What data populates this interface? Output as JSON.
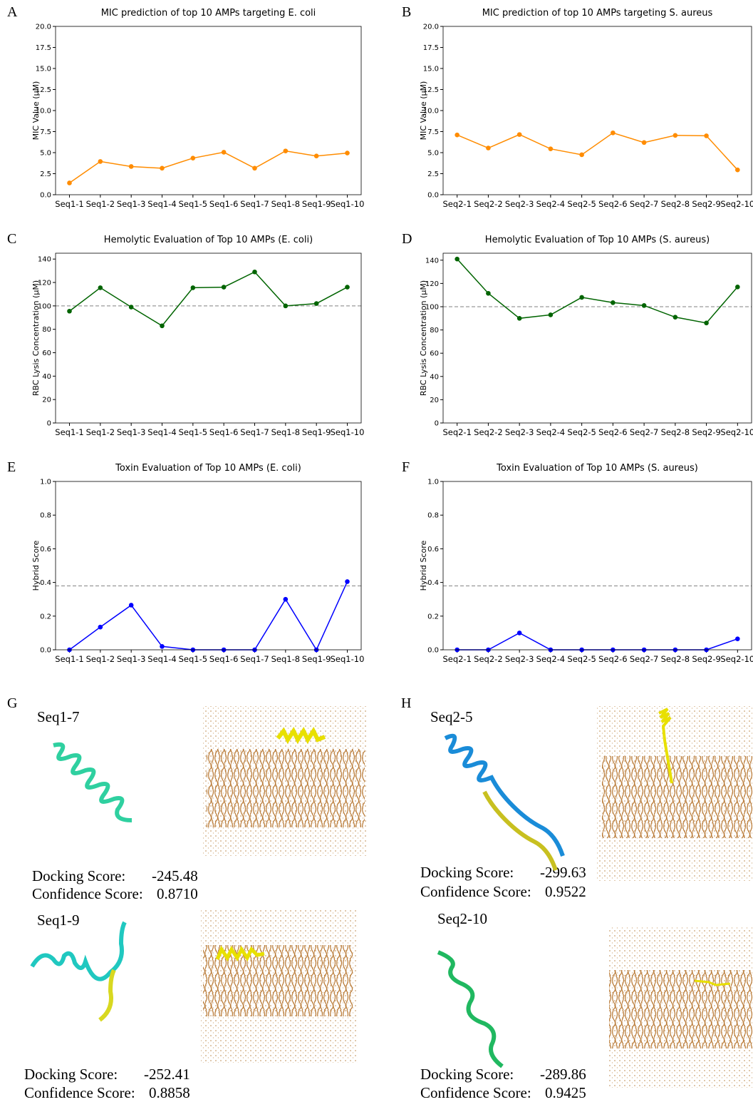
{
  "chart_data": [
    {
      "type": "line",
      "panel": "A",
      "title": "MIC prediction of top 10 AMPs targeting E. coli",
      "ylabel": "MIC Value (μM)",
      "categories": [
        "Seq1-1",
        "Seq1-2",
        "Seq1-3",
        "Seq1-4",
        "Seq1-5",
        "Seq1-6",
        "Seq1-7",
        "Seq1-8",
        "Seq1-9",
        "Seq1-10"
      ],
      "values": [
        1.4,
        3.95,
        3.35,
        3.15,
        4.35,
        5.05,
        3.15,
        5.2,
        4.6,
        4.95
      ],
      "color": "#ff8c00",
      "ylim": [
        0,
        20
      ],
      "yticks": [
        {
          "value": 0,
          "label": "0.0"
        },
        {
          "value": 2.5,
          "label": "2.5"
        },
        {
          "value": 5,
          "label": "5.0"
        },
        {
          "value": 7.5,
          "label": "7.5"
        },
        {
          "value": 10,
          "label": "10.0"
        },
        {
          "value": 12.5,
          "label": "12.5"
        },
        {
          "value": 15,
          "label": "15.0"
        },
        {
          "value": 17.5,
          "label": "17.5"
        },
        {
          "value": 20,
          "label": "20.0"
        }
      ]
    },
    {
      "type": "line",
      "panel": "B",
      "title": "MIC prediction of top 10 AMPs targeting S. aureus",
      "ylabel": "MIC Value (μM)",
      "categories": [
        "Seq2-1",
        "Seq2-2",
        "Seq2-3",
        "Seq2-4",
        "Seq2-5",
        "Seq2-6",
        "Seq2-7",
        "Seq2-8",
        "Seq2-9",
        "Seq2-10"
      ],
      "values": [
        7.1,
        5.55,
        7.15,
        5.45,
        4.75,
        7.35,
        6.2,
        7.05,
        7.0,
        2.95
      ],
      "color": "#ff8c00",
      "ylim": [
        0,
        20
      ],
      "yticks": [
        {
          "value": 0,
          "label": "0.0"
        },
        {
          "value": 2.5,
          "label": "2.5"
        },
        {
          "value": 5,
          "label": "5.0"
        },
        {
          "value": 7.5,
          "label": "7.5"
        },
        {
          "value": 10,
          "label": "10.0"
        },
        {
          "value": 12.5,
          "label": "12.5"
        },
        {
          "value": 15,
          "label": "15.0"
        },
        {
          "value": 17.5,
          "label": "17.5"
        },
        {
          "value": 20,
          "label": "20.0"
        }
      ]
    },
    {
      "type": "line",
      "panel": "C",
      "title": "Hemolytic Evaluation of Top 10 AMPs (E. coli)",
      "ylabel": "RBC Lysis Concentration (μM)",
      "categories": [
        "Seq1-1",
        "Seq1-2",
        "Seq1-3",
        "Seq1-4",
        "Seq1-5",
        "Seq1-6",
        "Seq1-7",
        "Seq1-8",
        "Seq1-9",
        "Seq1-10"
      ],
      "values": [
        95.5,
        115.5,
        99,
        83,
        115.5,
        116,
        129,
        100,
        102,
        116
      ],
      "color": "#006400",
      "hline": 100,
      "ylim": [
        0,
        145
      ],
      "yticks": [
        0,
        20,
        40,
        60,
        80,
        100,
        120,
        140
      ]
    },
    {
      "type": "line",
      "panel": "D",
      "title": "Hemolytic Evaluation of Top 10 AMPs (S. aureus)",
      "ylabel": "RBC Lysis Concentration (μM)",
      "categories": [
        "Seq2-1",
        "Seq2-2",
        "Seq2-3",
        "Seq2-4",
        "Seq2-5",
        "Seq2-6",
        "Seq2-7",
        "Seq2-8",
        "Seq2-9",
        "Seq2-10"
      ],
      "values": [
        141,
        111.5,
        90,
        93,
        108,
        103.5,
        101,
        91,
        86,
        117
      ],
      "color": "#006400",
      "hline": 100,
      "ylim": [
        0,
        146
      ],
      "yticks": [
        0,
        20,
        40,
        60,
        80,
        100,
        120,
        140
      ]
    },
    {
      "type": "line",
      "panel": "E",
      "title": "Toxin Evaluation of Top 10 AMPs (E. coli)",
      "ylabel": "Hybrid Score",
      "categories": [
        "Seq1-1",
        "Seq1-2",
        "Seq1-3",
        "Seq1-4",
        "Seq1-5",
        "Seq1-6",
        "Seq1-7",
        "Seq1-8",
        "Seq1-9",
        "Seq1-10"
      ],
      "values": [
        0,
        0.135,
        0.265,
        0.02,
        0,
        0,
        0,
        0.3,
        0,
        0.405
      ],
      "color": "#0000ff",
      "hline": 0.38,
      "ylim": [
        0,
        1
      ],
      "yticks": [
        {
          "value": 0,
          "label": "0.0"
        },
        0.2,
        0.4,
        0.6,
        0.8,
        {
          "value": 1,
          "label": "1.0"
        }
      ]
    },
    {
      "type": "line",
      "panel": "F",
      "title": "Toxin Evaluation of Top 10 AMPs (S. aureus)",
      "ylabel": "Hybrid Score",
      "categories": [
        "Seq2-1",
        "Seq2-2",
        "Seq2-3",
        "Seq2-4",
        "Seq2-5",
        "Seq2-6",
        "Seq2-7",
        "Seq2-8",
        "Seq2-9",
        "Seq2-10"
      ],
      "values": [
        0,
        0,
        0.1,
        0,
        0,
        0,
        0,
        0,
        0,
        0.065
      ],
      "color": "#0000ff",
      "hline": 0.38,
      "ylim": [
        0,
        1
      ],
      "yticks": [
        {
          "value": 0,
          "label": "0.0"
        },
        0.2,
        0.4,
        0.6,
        0.8,
        {
          "value": 1,
          "label": "1.0"
        }
      ]
    }
  ],
  "docking": [
    {
      "panel": "G",
      "entries": [
        {
          "name": "Seq1-7",
          "docking_label": "Docking Score:",
          "docking_score": "-245.48",
          "confidence_label": "Confidence Score:",
          "confidence_score": "0.8710"
        },
        {
          "name": "Seq1-9",
          "docking_label": "Docking Score:",
          "docking_score": "-252.41",
          "confidence_label": "Confidence Score:",
          "confidence_score": "0.8858"
        }
      ]
    },
    {
      "panel": "H",
      "entries": [
        {
          "name": "Seq2-5",
          "docking_label": "Docking Score:",
          "docking_score": "-299.63",
          "confidence_label": "Confidence Score:",
          "confidence_score": "0.9522"
        },
        {
          "name": "Seq2-10",
          "docking_label": "Docking Score:",
          "docking_score": "-289.86",
          "confidence_label": "Confidence Score:",
          "confidence_score": "0.9425"
        }
      ]
    }
  ]
}
